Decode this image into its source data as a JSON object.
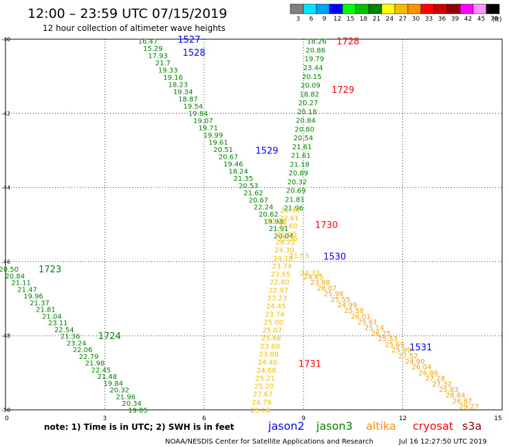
{
  "chart_data": {
    "type": "scatter",
    "title": "12:00 – 23:59 UTC 07/15/2019",
    "subtitle": "12 hour collection of altimeter wave heights",
    "xlim": [
      0,
      15
    ],
    "ylim": [
      -50,
      -40
    ],
    "x_ticks": [
      "0",
      "3",
      "6",
      "9",
      "12",
      "15"
    ],
    "y_ticks": [
      "-40",
      "-42",
      "-44",
      "-46",
      "-48",
      "-50"
    ],
    "grid": true,
    "unit": "(ft)",
    "color_scale": {
      "thresholds": [
        "3",
        "6",
        "9",
        "12",
        "15",
        "18",
        "21",
        "24",
        "27",
        "30",
        "33",
        "36",
        "39",
        "42",
        "45",
        "70"
      ],
      "colors": [
        "#808080",
        "#00e5ff",
        "#00a0ff",
        "#0000ff",
        "#00ff00",
        "#00c000",
        "#008000",
        "#ffff00",
        "#f0c000",
        "#ff9000",
        "#ff0000",
        "#d00000",
        "#900000",
        "#ff00ff",
        "#ff90ff",
        "#000000"
      ]
    },
    "passes": [
      {
        "name": "jason3",
        "color": "#008000",
        "x0": 4.3,
        "y0": -40.05,
        "x1": 8.4,
        "y1": -45.3,
        "values": [
          "16.47",
          "15.29",
          "17.93",
          "21.7",
          "19.33",
          "19.16",
          "18.23",
          "19.34",
          "18.87",
          "19.54",
          "19.84",
          "19.07",
          "19.71",
          "19.99",
          "19.61",
          "20.51",
          "20.67",
          "19.46",
          "18.24",
          "21.35",
          "20.53",
          "21.62",
          "20.67",
          "22.24",
          "20.62",
          "19.98",
          "21.91",
          "20.04"
        ]
      },
      {
        "name": "jason3",
        "color": "#008000",
        "x0": 9.4,
        "y0": -40.05,
        "x1": 8.7,
        "y1": -44.55,
        "values": [
          "18.26",
          "20.86",
          "19.79",
          "23.44",
          "20.15",
          "20.09",
          "18.82",
          "20.27",
          "20.18",
          "20.84",
          "20.80",
          "20.54",
          "21.61",
          "21.61",
          "21.18",
          "20.89",
          "20.32",
          "20.69",
          "21.81",
          "21.96"
        ]
      },
      {
        "name": "altika",
        "color": "#f0c000",
        "x0": 8.6,
        "y0": -44.6,
        "x1": 7.7,
        "y1": -50.0,
        "values": [
          "22.34",
          "22.61",
          "22.60",
          "21.90",
          "24.22",
          "24.30",
          "24.18",
          "23.74",
          "23.65",
          "22.80",
          "22.97",
          "23.23",
          "24.45",
          "23.74",
          "25.00",
          "25.07",
          "25.46",
          "23.60",
          "23.88",
          "24.40",
          "24.68",
          "25.21",
          "25.20",
          "27.67",
          "24.79",
          "25.16"
        ]
      },
      {
        "name": "altika",
        "color": "#f0c000",
        "x0": 8.2,
        "y0": -44.9,
        "x1": 9.2,
        "y1": -46.3,
        "values": [
          "21.36",
          "21.36",
          "21.53",
          "24.33"
        ]
      },
      {
        "name": "altika",
        "color": "#f0a000",
        "x0": 9.3,
        "y0": -46.4,
        "x1": 14.0,
        "y1": -49.9,
        "values": [
          "24.65",
          "23.98",
          "26.07",
          "25.98",
          "25.55",
          "24.99",
          "25.58",
          "26.01",
          "25.61",
          "25.14",
          "26.25",
          "25.53",
          "25.69",
          "25.99",
          "27.52",
          "24.90",
          "26.04",
          "26.86",
          "27.28",
          "27.32",
          "25.83",
          "28.64",
          "26.87",
          "29.27"
        ]
      },
      {
        "name": "jason3",
        "color": "#008000",
        "x0": 0.1,
        "y0": -46.2,
        "x1": 4.0,
        "y1": -50.0,
        "values": [
          "20.50",
          "20.84",
          "21.11",
          "21.47",
          "19.96",
          "21.37",
          "21.81",
          "21.04",
          "23.11",
          "22.54",
          "21.36",
          "23.24",
          "22.06",
          "22.79",
          "21.98",
          "22.45",
          "21.48",
          "19.84",
          "20.32",
          "21.96",
          "20.34",
          "19.05"
        ]
      }
    ],
    "annotations": [
      {
        "text": "1527",
        "color": "#0000ff",
        "x": 5.2,
        "y": -40.0
      },
      {
        "text": "1528",
        "color": "#0000ff",
        "x": 5.35,
        "y": -40.35
      },
      {
        "text": "1529",
        "color": "#0000ff",
        "x": 7.55,
        "y": -43.0
      },
      {
        "text": "1530",
        "color": "#0000ff",
        "x": 9.6,
        "y": -45.85
      },
      {
        "text": "1531",
        "color": "#0000ff",
        "x": 12.2,
        "y": -48.3
      },
      {
        "text": "1728",
        "color": "#ff0000",
        "x": 10.0,
        "y": -40.05
      },
      {
        "text": "1729",
        "color": "#ff0000",
        "x": 9.85,
        "y": -41.35
      },
      {
        "text": "1730",
        "color": "#ff0000",
        "x": 9.35,
        "y": -45.0
      },
      {
        "text": "1731",
        "color": "#ff0000",
        "x": 8.85,
        "y": -48.75
      },
      {
        "text": "1723",
        "color": "#008000",
        "x": 1.0,
        "y": -46.2
      },
      {
        "text": "1724",
        "color": "#008000",
        "x": 2.8,
        "y": -48.0
      }
    ]
  },
  "footer": {
    "note": "note: 1) Time is in UTC; 2) SWH is in feet",
    "satellites": [
      {
        "name": "jason2",
        "color": "#0000ff"
      },
      {
        "name": "jason3",
        "color": "#008000"
      },
      {
        "name": "altika",
        "color": "#ff9000"
      },
      {
        "name": "cryosat",
        "color": "#ff0000"
      },
      {
        "name": "s3a",
        "color": "#900000"
      }
    ],
    "credit": "NOAA/NESDIS Center for Satellite Applications and Research",
    "timestamp": "Jul 16 12:27:50 UTC 2019"
  }
}
